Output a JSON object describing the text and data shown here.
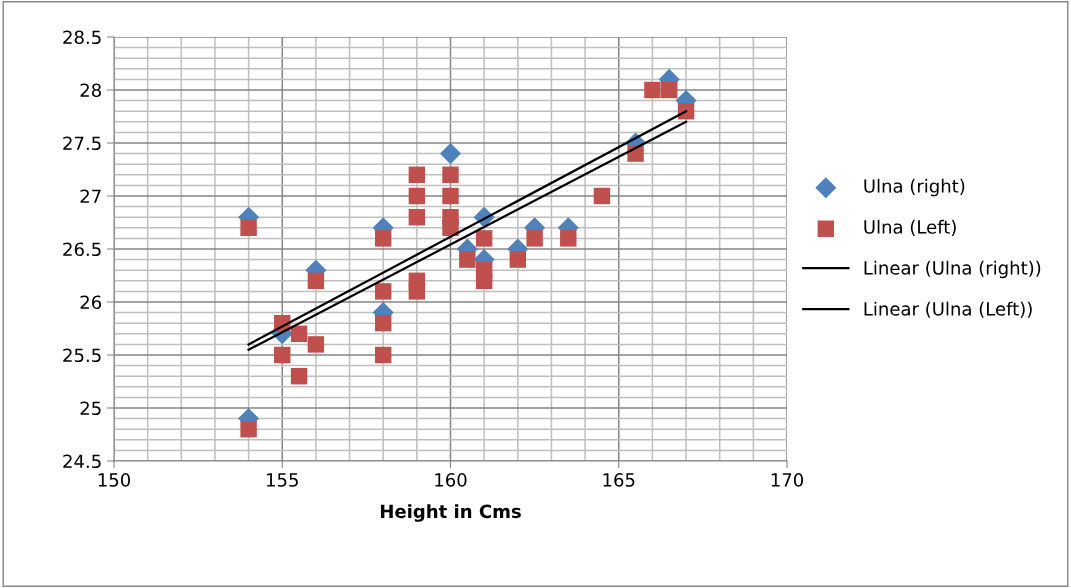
{
  "chart_data": {
    "type": "scatter",
    "xlabel": "Height in Cms",
    "xlim": [
      150,
      170
    ],
    "xticks": [
      150,
      155,
      160,
      165,
      170
    ],
    "ylim": [
      24.5,
      28.5
    ],
    "yticks": [
      24.5,
      25,
      25.5,
      26,
      26.5,
      27,
      27.5,
      28,
      28.5
    ],
    "grid": true,
    "legend": "right",
    "series": [
      {
        "name": "Ulna (right)",
        "color": "#4f81bd",
        "marker": "diamond",
        "x": [
          154,
          154,
          155,
          156,
          158,
          158,
          160,
          160.5,
          161,
          161,
          162,
          162.5,
          163.5,
          165.5,
          166.5,
          167
        ],
        "values": [
          26.8,
          24.9,
          25.7,
          26.3,
          26.7,
          25.9,
          27.4,
          26.5,
          26.8,
          26.4,
          26.5,
          26.7,
          26.7,
          27.5,
          28.1,
          27.9
        ]
      },
      {
        "name": "Ulna (Left)",
        "color": "#c0504d",
        "marker": "square",
        "x": [
          154,
          154,
          155,
          155,
          155.5,
          155.5,
          156,
          156,
          158,
          158,
          158,
          158,
          159,
          159,
          159,
          159,
          159,
          160,
          160,
          160,
          160,
          160.5,
          161,
          161,
          161,
          162,
          162.5,
          163.5,
          164.5,
          165.5,
          166,
          166.5,
          167
        ],
        "values": [
          26.7,
          24.8,
          25.8,
          25.5,
          25.7,
          25.3,
          26.2,
          25.6,
          26.6,
          26.1,
          25.8,
          25.5,
          27.2,
          27.0,
          26.8,
          26.2,
          26.1,
          27.2,
          27.0,
          26.8,
          26.7,
          26.4,
          26.6,
          26.3,
          26.2,
          26.4,
          26.6,
          26.6,
          27.0,
          27.4,
          28.0,
          28.0,
          27.8
        ]
      },
      {
        "name": "Linear (Ulna (right))",
        "type": "line",
        "color": "#000000",
        "marker": "none",
        "x": [
          154,
          167
        ],
        "values": [
          25.6,
          27.8
        ]
      },
      {
        "name": "Linear (Ulna (Left))",
        "type": "line",
        "color": "#000000",
        "marker": "none",
        "x": [
          154,
          167
        ],
        "values": [
          25.55,
          27.7
        ]
      }
    ]
  }
}
